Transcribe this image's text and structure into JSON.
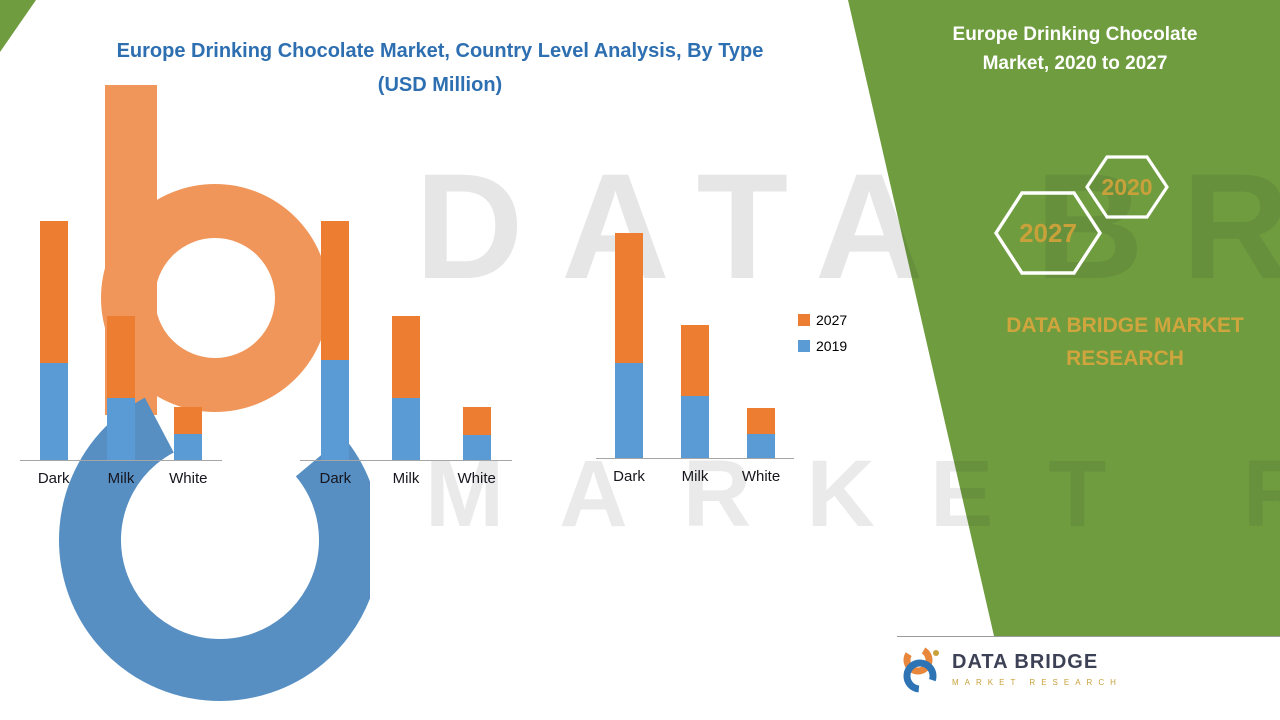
{
  "title": {
    "line1": "Europe Drinking Chocolate Market, Country Level Analysis, By Type",
    "line2": "(USD Million)"
  },
  "chart_data": {
    "type": "bar",
    "stacked": true,
    "title": "Europe Drinking Chocolate Market, Country Level Analysis, By Type (USD Million)",
    "unit": "USD Million",
    "categories": [
      "Dark",
      "Milk",
      "White"
    ],
    "legend": [
      "2027",
      "2019"
    ],
    "legend_position": "right",
    "value_axis": {
      "visible": false,
      "gridlines": false
    },
    "series_colors": {
      "2019": "#5B9BD5",
      "2027": "#ED7D31"
    },
    "groups": [
      {
        "name": "group-1",
        "series": [
          {
            "name": "2019",
            "values": [
              97,
              62,
              26
            ]
          },
          {
            "name": "2027",
            "values": [
              142,
              82,
              27
            ]
          }
        ]
      },
      {
        "name": "group-2",
        "series": [
          {
            "name": "2019",
            "values": [
              100,
              62,
              25
            ]
          },
          {
            "name": "2027",
            "values": [
              139,
              82,
              28
            ]
          }
        ]
      },
      {
        "name": "group-3",
        "series": [
          {
            "name": "2019",
            "values": [
              95,
              62,
              24
            ]
          },
          {
            "name": "2027",
            "values": [
              130,
              71,
              26
            ]
          }
        ]
      }
    ]
  },
  "side_panel": {
    "title_line1": "Europe Drinking Chocolate",
    "title_line2": "Market, 2020 to 2027",
    "hex_year_back": "2020",
    "hex_year_front": "2027",
    "brand_line1": "DATA BRIDGE MARKET",
    "brand_line2": "RESEARCH",
    "colors": {
      "panel_green": "#6E9C3E",
      "gold": "#C9A13B",
      "white": "#FFFFFF"
    }
  },
  "watermark": {
    "line1": "DATA BRIDGE",
    "line2": "MARKET RESEARCH"
  },
  "footer": {
    "brand": "DATA BRIDGE",
    "sub": "MARKET RESEARCH"
  }
}
